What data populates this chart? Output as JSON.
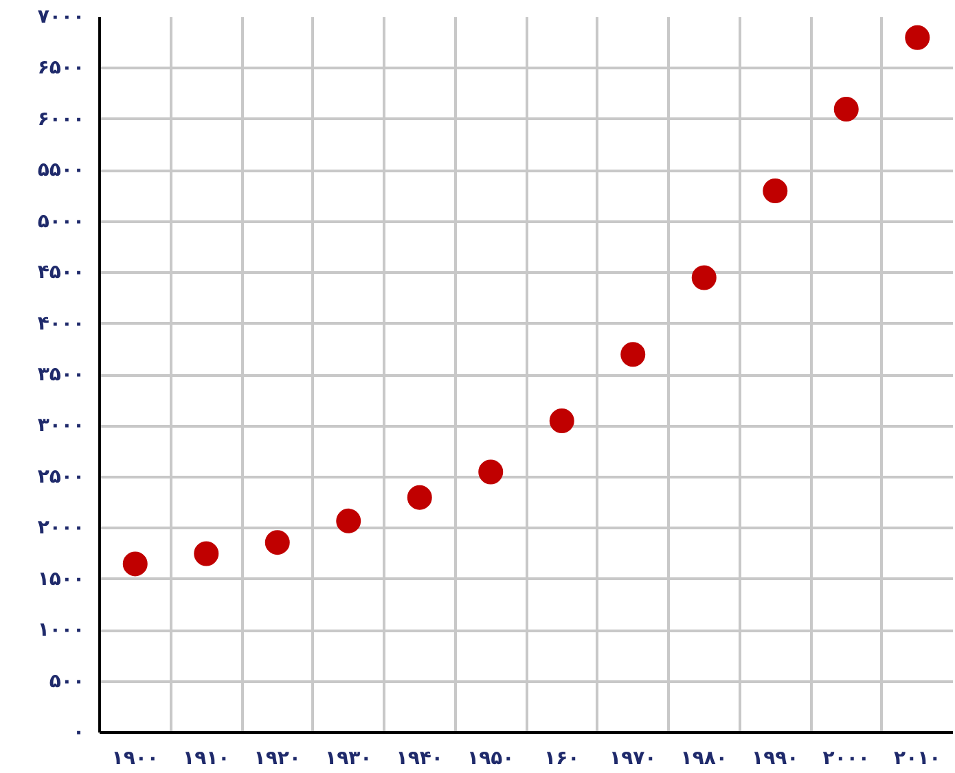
{
  "chart_data": {
    "type": "scatter",
    "categories": [
      "۱۹۰۰",
      "۱۹۱۰",
      "۱۹۲۰",
      "۱۹۳۰",
      "۱۹۴۰",
      "۱۹۵۰",
      "۱۶۰",
      "۱۹۷۰",
      "۱۹۸۰",
      "۱۹۹۰",
      "۲۰۰۰",
      "۲۰۱۰"
    ],
    "series": [
      {
        "color": "#c00000",
        "values": [
          1650,
          1750,
          1860,
          2070,
          2300,
          2550,
          3050,
          3700,
          4450,
          5300,
          6100,
          6800
        ]
      }
    ],
    "ylim": [
      0,
      7000
    ],
    "yticks": [
      {
        "value": 0,
        "label": "۰"
      },
      {
        "value": 500,
        "label": "۵۰۰"
      },
      {
        "value": 1000,
        "label": "۱۰۰۰"
      },
      {
        "value": 1500,
        "label": "۱۵۰۰"
      },
      {
        "value": 2000,
        "label": "۲۰۰۰"
      },
      {
        "value": 2500,
        "label": "۲۵۰۰"
      },
      {
        "value": 3000,
        "label": "۳۰۰۰"
      },
      {
        "value": 3500,
        "label": "۳۵۰۰"
      },
      {
        "value": 4000,
        "label": "۴۰۰۰"
      },
      {
        "value": 4500,
        "label": "۴۵۰۰"
      },
      {
        "value": 5000,
        "label": "۵۰۰۰"
      },
      {
        "value": 5500,
        "label": "۵۵۰۰"
      },
      {
        "value": 6000,
        "label": "۶۰۰۰"
      },
      {
        "value": 6500,
        "label": "۶۵۰۰"
      },
      {
        "value": 7000,
        "label": "۷۰۰۰"
      }
    ],
    "grid": true,
    "marker": "circle"
  }
}
